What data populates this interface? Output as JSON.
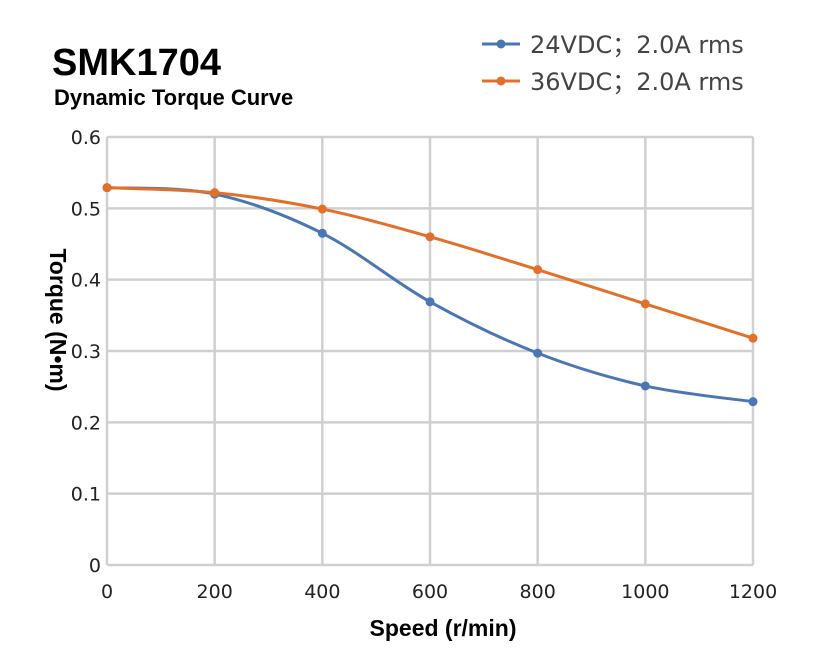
{
  "chart_data": {
    "type": "line",
    "title": "SMK1704",
    "subtitle": "Dynamic Torque Curve",
    "xlabel": "Speed (r/min)",
    "ylabel": "Torque (N•m)",
    "xlim": [
      0,
      1200
    ],
    "ylim": [
      0,
      0.6
    ],
    "xticks": [
      "0",
      "200",
      "400",
      "600",
      "800",
      "1000",
      "1200"
    ],
    "yticks": [
      "0",
      "0.1",
      "0.2",
      "0.3",
      "0.4",
      "0.5",
      "0.6"
    ],
    "grid": true,
    "legend_position": "top-right",
    "x": [
      0,
      200,
      400,
      600,
      800,
      1000,
      1200
    ],
    "series": [
      {
        "name": "24VDC；2.0A rms",
        "color": "#4a76b4",
        "values": [
          0.529,
          0.52,
          0.465,
          0.369,
          0.297,
          0.251,
          0.229
        ]
      },
      {
        "name": "36VDC；2.0A rms",
        "color": "#e2702b",
        "values": [
          0.529,
          0.522,
          0.499,
          0.46,
          0.414,
          0.366,
          0.318
        ]
      }
    ]
  }
}
